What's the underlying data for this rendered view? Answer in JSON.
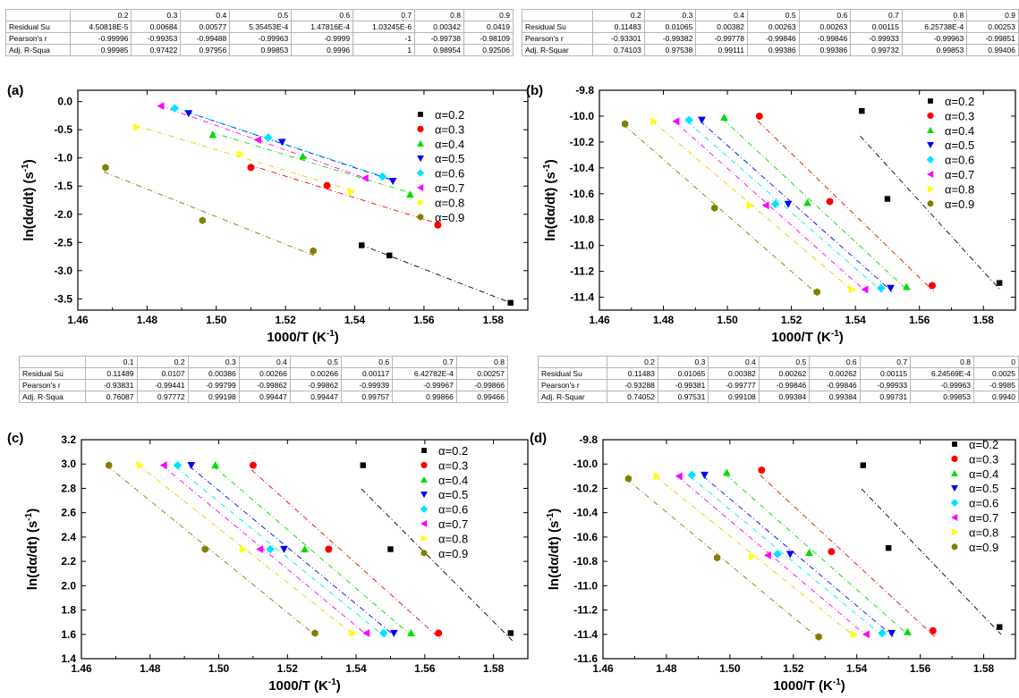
{
  "tables": [
    {
      "id": "table-a",
      "headers": [
        "",
        "0.2",
        "0.3",
        "0.4",
        "0.5",
        "0.6",
        "0.7",
        "0.8",
        "0.9"
      ],
      "rows": [
        [
          "Residual Su",
          "4.50818E-5",
          "0.00684",
          "0.00577",
          "5.35453E-4",
          "1.47816E-4",
          "1.03245E-6",
          "0.00342",
          "0.0419"
        ],
        [
          "Pearson's r",
          "-0.99996",
          "-0.99353",
          "-0.99488",
          "-0.99963",
          "-0.9999",
          "-1",
          "-0.99738",
          "-0.98109"
        ],
        [
          "Adj. R-Squa",
          "0.99985",
          "0.97422",
          "0.97956",
          "0.99853",
          "0.9996",
          "1",
          "0.98954",
          "0.92506"
        ]
      ]
    },
    {
      "id": "table-b",
      "headers": [
        "",
        "0.2",
        "0.3",
        "0.4",
        "0.5",
        "0.6",
        "0.7",
        "0.8",
        "0.9"
      ],
      "rows": [
        [
          "Residual Su",
          "0.11483",
          "0.01065",
          "0.00382",
          "0.00263",
          "0.00263",
          "0.00115",
          "6.25738E-4",
          "0.00253"
        ],
        [
          "Pearson's r",
          "-0.93301",
          "-0.99382",
          "-0.99778",
          "-0.99846",
          "-0.99846",
          "-0.99933",
          "-0.99963",
          "-0.99851"
        ],
        [
          "Adj. R-Squar",
          "0.74103",
          "0.97538",
          "0.99111",
          "0.99386",
          "0.99386",
          "0.99732",
          "0.99853",
          "0.99406"
        ]
      ]
    },
    {
      "id": "table-c",
      "headers": [
        "",
        "0.1",
        "0.2",
        "0.3",
        "0.4",
        "0.5",
        "0.6",
        "0.7",
        "0.8"
      ],
      "rows": [
        [
          "Residual Su",
          "0.11489",
          "0.0107",
          "0.00386",
          "0.00266",
          "0.00266",
          "0.00117",
          "6.42782E-4",
          "0.00257"
        ],
        [
          "Pearson's r",
          "-0.93831",
          "-0.99441",
          "-0.99799",
          "-0.99862",
          "-0.99862",
          "-0.99939",
          "-0.99967",
          "-0.99866"
        ],
        [
          "Adj. R-Squa",
          "0.76087",
          "0.97772",
          "0.99198",
          "0.99447",
          "0.99447",
          "0.99757",
          "0.99866",
          "0.99466"
        ]
      ]
    },
    {
      "id": "table-d",
      "headers": [
        "",
        "0.2",
        "0.3",
        "0.4",
        "0.5",
        "0.6",
        "0.7",
        "0.8",
        "0"
      ],
      "rows": [
        [
          "Residual Su",
          "0.11483",
          "0.01065",
          "0.00382",
          "0.00262",
          "0.00262",
          "0.00115",
          "6.24569E-4",
          "0.0025"
        ],
        [
          "Pearson's r",
          "-0.93288",
          "-0.99381",
          "-0.99777",
          "-0.99846",
          "-0.99846",
          "-0.99933",
          "-0.99963",
          "-0.9985"
        ],
        [
          "Adj. R-Squar",
          "0.74052",
          "0.97531",
          "0.99108",
          "0.99384",
          "0.99384",
          "0.99731",
          "0.99853",
          "0.9940"
        ]
      ]
    }
  ],
  "chart_data": [
    {
      "id": "a",
      "panel_label": "(a)",
      "type": "scatter",
      "xlabel": "1000/T (K",
      "xlabel_sup": "-1",
      "xlabel_close": ")",
      "ylabel": "ln(dα/dt) (s",
      "ylabel_sup": "-1",
      "ylabel_close": ")",
      "xlim": [
        1.46,
        1.59
      ],
      "ylim": [
        -3.7,
        0.2
      ],
      "xticks": [
        "1.46",
        "1.48",
        "1.50",
        "1.52",
        "1.54",
        "1.56",
        "1.58"
      ],
      "yticks": [
        "0.0",
        "-0.5",
        "-1.0",
        "-1.5",
        "-2.0",
        "-2.5",
        "-3.0",
        "-3.5"
      ],
      "legend_position": "right",
      "series": [
        {
          "name": "α=0.2",
          "color": "#000000",
          "marker": "square",
          "x": [
            1.542,
            1.55,
            1.585
          ],
          "y": [
            -2.55,
            -2.73,
            -3.57
          ]
        },
        {
          "name": "α=0.3",
          "color": "#ff0000",
          "marker": "circle",
          "x": [
            1.51,
            1.532,
            1.564
          ],
          "y": [
            -1.17,
            -1.49,
            -2.19
          ]
        },
        {
          "name": "α=0.4",
          "color": "#00dd00",
          "marker": "triangle-up",
          "x": [
            1.499,
            1.525,
            1.556
          ],
          "y": [
            -0.59,
            -0.97,
            -1.65
          ]
        },
        {
          "name": "α=0.5",
          "color": "#0000ff",
          "marker": "triangle-down",
          "x": [
            1.492,
            1.519,
            1.551
          ],
          "y": [
            -0.21,
            -0.72,
            -1.41
          ]
        },
        {
          "name": "α=0.6",
          "color": "#00e5ff",
          "marker": "diamond",
          "x": [
            1.488,
            1.515,
            1.548
          ],
          "y": [
            -0.12,
            -0.64,
            -1.33
          ]
        },
        {
          "name": "α=0.7",
          "color": "#ff00ff",
          "marker": "triangle-left",
          "x": [
            1.484,
            1.512,
            1.543
          ],
          "y": [
            -0.08,
            -0.68,
            -1.36
          ]
        },
        {
          "name": "α=0.8",
          "color": "#ffff00",
          "marker": "triangle-right",
          "x": [
            1.477,
            1.507,
            1.539
          ],
          "y": [
            -0.46,
            -0.93,
            -1.6
          ]
        },
        {
          "name": "α=0.9",
          "color": "#808000",
          "marker": "hexagon",
          "x": [
            1.468,
            1.496,
            1.528
          ],
          "y": [
            -1.17,
            -2.11,
            -2.65
          ]
        }
      ]
    },
    {
      "id": "b",
      "panel_label": "(b)",
      "type": "scatter",
      "xlabel": "1000/T (K",
      "xlabel_sup": "-1",
      "xlabel_close": ")",
      "ylabel": "ln(dα/dt) (s",
      "ylabel_sup": "-1",
      "ylabel_close": ")",
      "xlim": [
        1.46,
        1.59
      ],
      "ylim": [
        -11.5,
        -9.8
      ],
      "xticks": [
        "1.46",
        "1.48",
        "1.50",
        "1.52",
        "1.54",
        "1.56",
        "1.58"
      ],
      "yticks": [
        "-9.8",
        "-10.0",
        "-10.2",
        "-10.4",
        "-10.6",
        "-10.8",
        "-11.0",
        "-11.2",
        "-11.4"
      ],
      "legend_position": "top-right",
      "series": [
        {
          "name": "α=0.2",
          "color": "#000000",
          "marker": "square",
          "x": [
            1.542,
            1.55,
            1.585
          ],
          "y": [
            -9.96,
            -10.64,
            -11.29
          ]
        },
        {
          "name": "α=0.3",
          "color": "#ff0000",
          "marker": "circle",
          "x": [
            1.51,
            1.532,
            1.564
          ],
          "y": [
            -10.0,
            -10.66,
            -11.31
          ]
        },
        {
          "name": "α=0.4",
          "color": "#00dd00",
          "marker": "triangle-up",
          "x": [
            1.499,
            1.525,
            1.556
          ],
          "y": [
            -10.01,
            -10.67,
            -11.32
          ]
        },
        {
          "name": "α=0.5",
          "color": "#0000ff",
          "marker": "triangle-down",
          "x": [
            1.492,
            1.519,
            1.551
          ],
          "y": [
            -10.03,
            -10.68,
            -11.33
          ]
        },
        {
          "name": "α=0.6",
          "color": "#00e5ff",
          "marker": "diamond",
          "x": [
            1.488,
            1.515,
            1.548
          ],
          "y": [
            -10.03,
            -10.68,
            -11.33
          ]
        },
        {
          "name": "α=0.7",
          "color": "#ff00ff",
          "marker": "triangle-left",
          "x": [
            1.484,
            1.512,
            1.543
          ],
          "y": [
            -10.04,
            -10.69,
            -11.34
          ]
        },
        {
          "name": "α=0.8",
          "color": "#ffff00",
          "marker": "triangle-right",
          "x": [
            1.477,
            1.507,
            1.539
          ],
          "y": [
            -10.04,
            -10.69,
            -11.34
          ]
        },
        {
          "name": "α=0.9",
          "color": "#808000",
          "marker": "hexagon",
          "x": [
            1.468,
            1.496,
            1.528
          ],
          "y": [
            -10.06,
            -10.71,
            -11.36
          ]
        }
      ]
    },
    {
      "id": "c",
      "panel_label": "(c)",
      "type": "scatter",
      "xlabel": "1000/T (K",
      "xlabel_sup": "-1",
      "xlabel_close": ")",
      "ylabel": "ln(dα/dt) (s",
      "ylabel_sup": "-1",
      "ylabel_close": ")",
      "xlim": [
        1.46,
        1.59
      ],
      "ylim": [
        1.4,
        3.2
      ],
      "xticks": [
        "1.46",
        "1.48",
        "1.50",
        "1.52",
        "1.54",
        "1.56",
        "1.58"
      ],
      "yticks": [
        "3.2",
        "3.0",
        "2.8",
        "2.6",
        "2.4",
        "2.2",
        "2.0",
        "1.8",
        "1.6",
        "1.4"
      ],
      "legend_position": "top-right",
      "series": [
        {
          "name": "α=0.2",
          "color": "#000000",
          "marker": "square",
          "x": [
            1.542,
            1.55,
            1.585
          ],
          "y": [
            2.99,
            2.3,
            1.61
          ]
        },
        {
          "name": "α=0.3",
          "color": "#ff0000",
          "marker": "circle",
          "x": [
            1.51,
            1.532,
            1.564
          ],
          "y": [
            2.99,
            2.3,
            1.61
          ]
        },
        {
          "name": "α=0.4",
          "color": "#00dd00",
          "marker": "triangle-up",
          "x": [
            1.499,
            1.525,
            1.556
          ],
          "y": [
            2.99,
            2.3,
            1.61
          ]
        },
        {
          "name": "α=0.5",
          "color": "#0000ff",
          "marker": "triangle-down",
          "x": [
            1.492,
            1.519,
            1.551
          ],
          "y": [
            2.99,
            2.3,
            1.61
          ]
        },
        {
          "name": "α=0.6",
          "color": "#00e5ff",
          "marker": "diamond",
          "x": [
            1.488,
            1.515,
            1.548
          ],
          "y": [
            2.99,
            2.3,
            1.61
          ]
        },
        {
          "name": "α=0.7",
          "color": "#ff00ff",
          "marker": "triangle-left",
          "x": [
            1.484,
            1.512,
            1.543
          ],
          "y": [
            2.99,
            2.3,
            1.61
          ]
        },
        {
          "name": "α=0.8",
          "color": "#ffff00",
          "marker": "triangle-right",
          "x": [
            1.477,
            1.507,
            1.539
          ],
          "y": [
            2.99,
            2.3,
            1.61
          ]
        },
        {
          "name": "α=0.9",
          "color": "#808000",
          "marker": "hexagon",
          "x": [
            1.468,
            1.496,
            1.528
          ],
          "y": [
            2.99,
            2.3,
            1.61
          ]
        }
      ]
    },
    {
      "id": "d",
      "panel_label": "(d)",
      "type": "scatter",
      "xlabel": "1000/T (K",
      "xlabel_sup": "-1",
      "xlabel_close": ")",
      "ylabel": "ln(dα/dt) (s",
      "ylabel_sup": "-1",
      "ylabel_close": ")",
      "xlim": [
        1.46,
        1.59
      ],
      "ylim": [
        -11.6,
        -9.8
      ],
      "xticks": [
        "1.46",
        "1.48",
        "1.50",
        "1.52",
        "1.54",
        "1.56",
        "1.58"
      ],
      "yticks": [
        "-9.8",
        "-10.0",
        "-10.2",
        "-10.4",
        "-10.6",
        "-10.8",
        "-11.0",
        "-11.2",
        "-11.4",
        "-11.6"
      ],
      "legend_position": "top-right",
      "series": [
        {
          "name": "α=0.2",
          "color": "#000000",
          "marker": "square",
          "x": [
            1.542,
            1.55,
            1.585
          ],
          "y": [
            -10.01,
            -10.69,
            -11.34
          ]
        },
        {
          "name": "α=0.3",
          "color": "#ff0000",
          "marker": "circle",
          "x": [
            1.51,
            1.532,
            1.564
          ],
          "y": [
            -10.05,
            -10.72,
            -11.37
          ]
        },
        {
          "name": "α=0.4",
          "color": "#00dd00",
          "marker": "triangle-up",
          "x": [
            1.499,
            1.525,
            1.556
          ],
          "y": [
            -10.07,
            -10.73,
            -11.38
          ]
        },
        {
          "name": "α=0.5",
          "color": "#0000ff",
          "marker": "triangle-down",
          "x": [
            1.492,
            1.519,
            1.551
          ],
          "y": [
            -10.09,
            -10.74,
            -11.39
          ]
        },
        {
          "name": "α=0.6",
          "color": "#00e5ff",
          "marker": "diamond",
          "x": [
            1.488,
            1.515,
            1.548
          ],
          "y": [
            -10.09,
            -10.74,
            -11.39
          ]
        },
        {
          "name": "α=0.7",
          "color": "#ff00ff",
          "marker": "triangle-left",
          "x": [
            1.484,
            1.512,
            1.543
          ],
          "y": [
            -10.1,
            -10.75,
            -11.4
          ]
        },
        {
          "name": "α=0.8",
          "color": "#ffff00",
          "marker": "triangle-right",
          "x": [
            1.477,
            1.507,
            1.539
          ],
          "y": [
            -10.1,
            -10.76,
            -11.4
          ]
        },
        {
          "name": "α=0.9",
          "color": "#808000",
          "marker": "hexagon",
          "x": [
            1.468,
            1.496,
            1.528
          ],
          "y": [
            -10.12,
            -10.77,
            -11.42
          ]
        }
      ]
    }
  ]
}
